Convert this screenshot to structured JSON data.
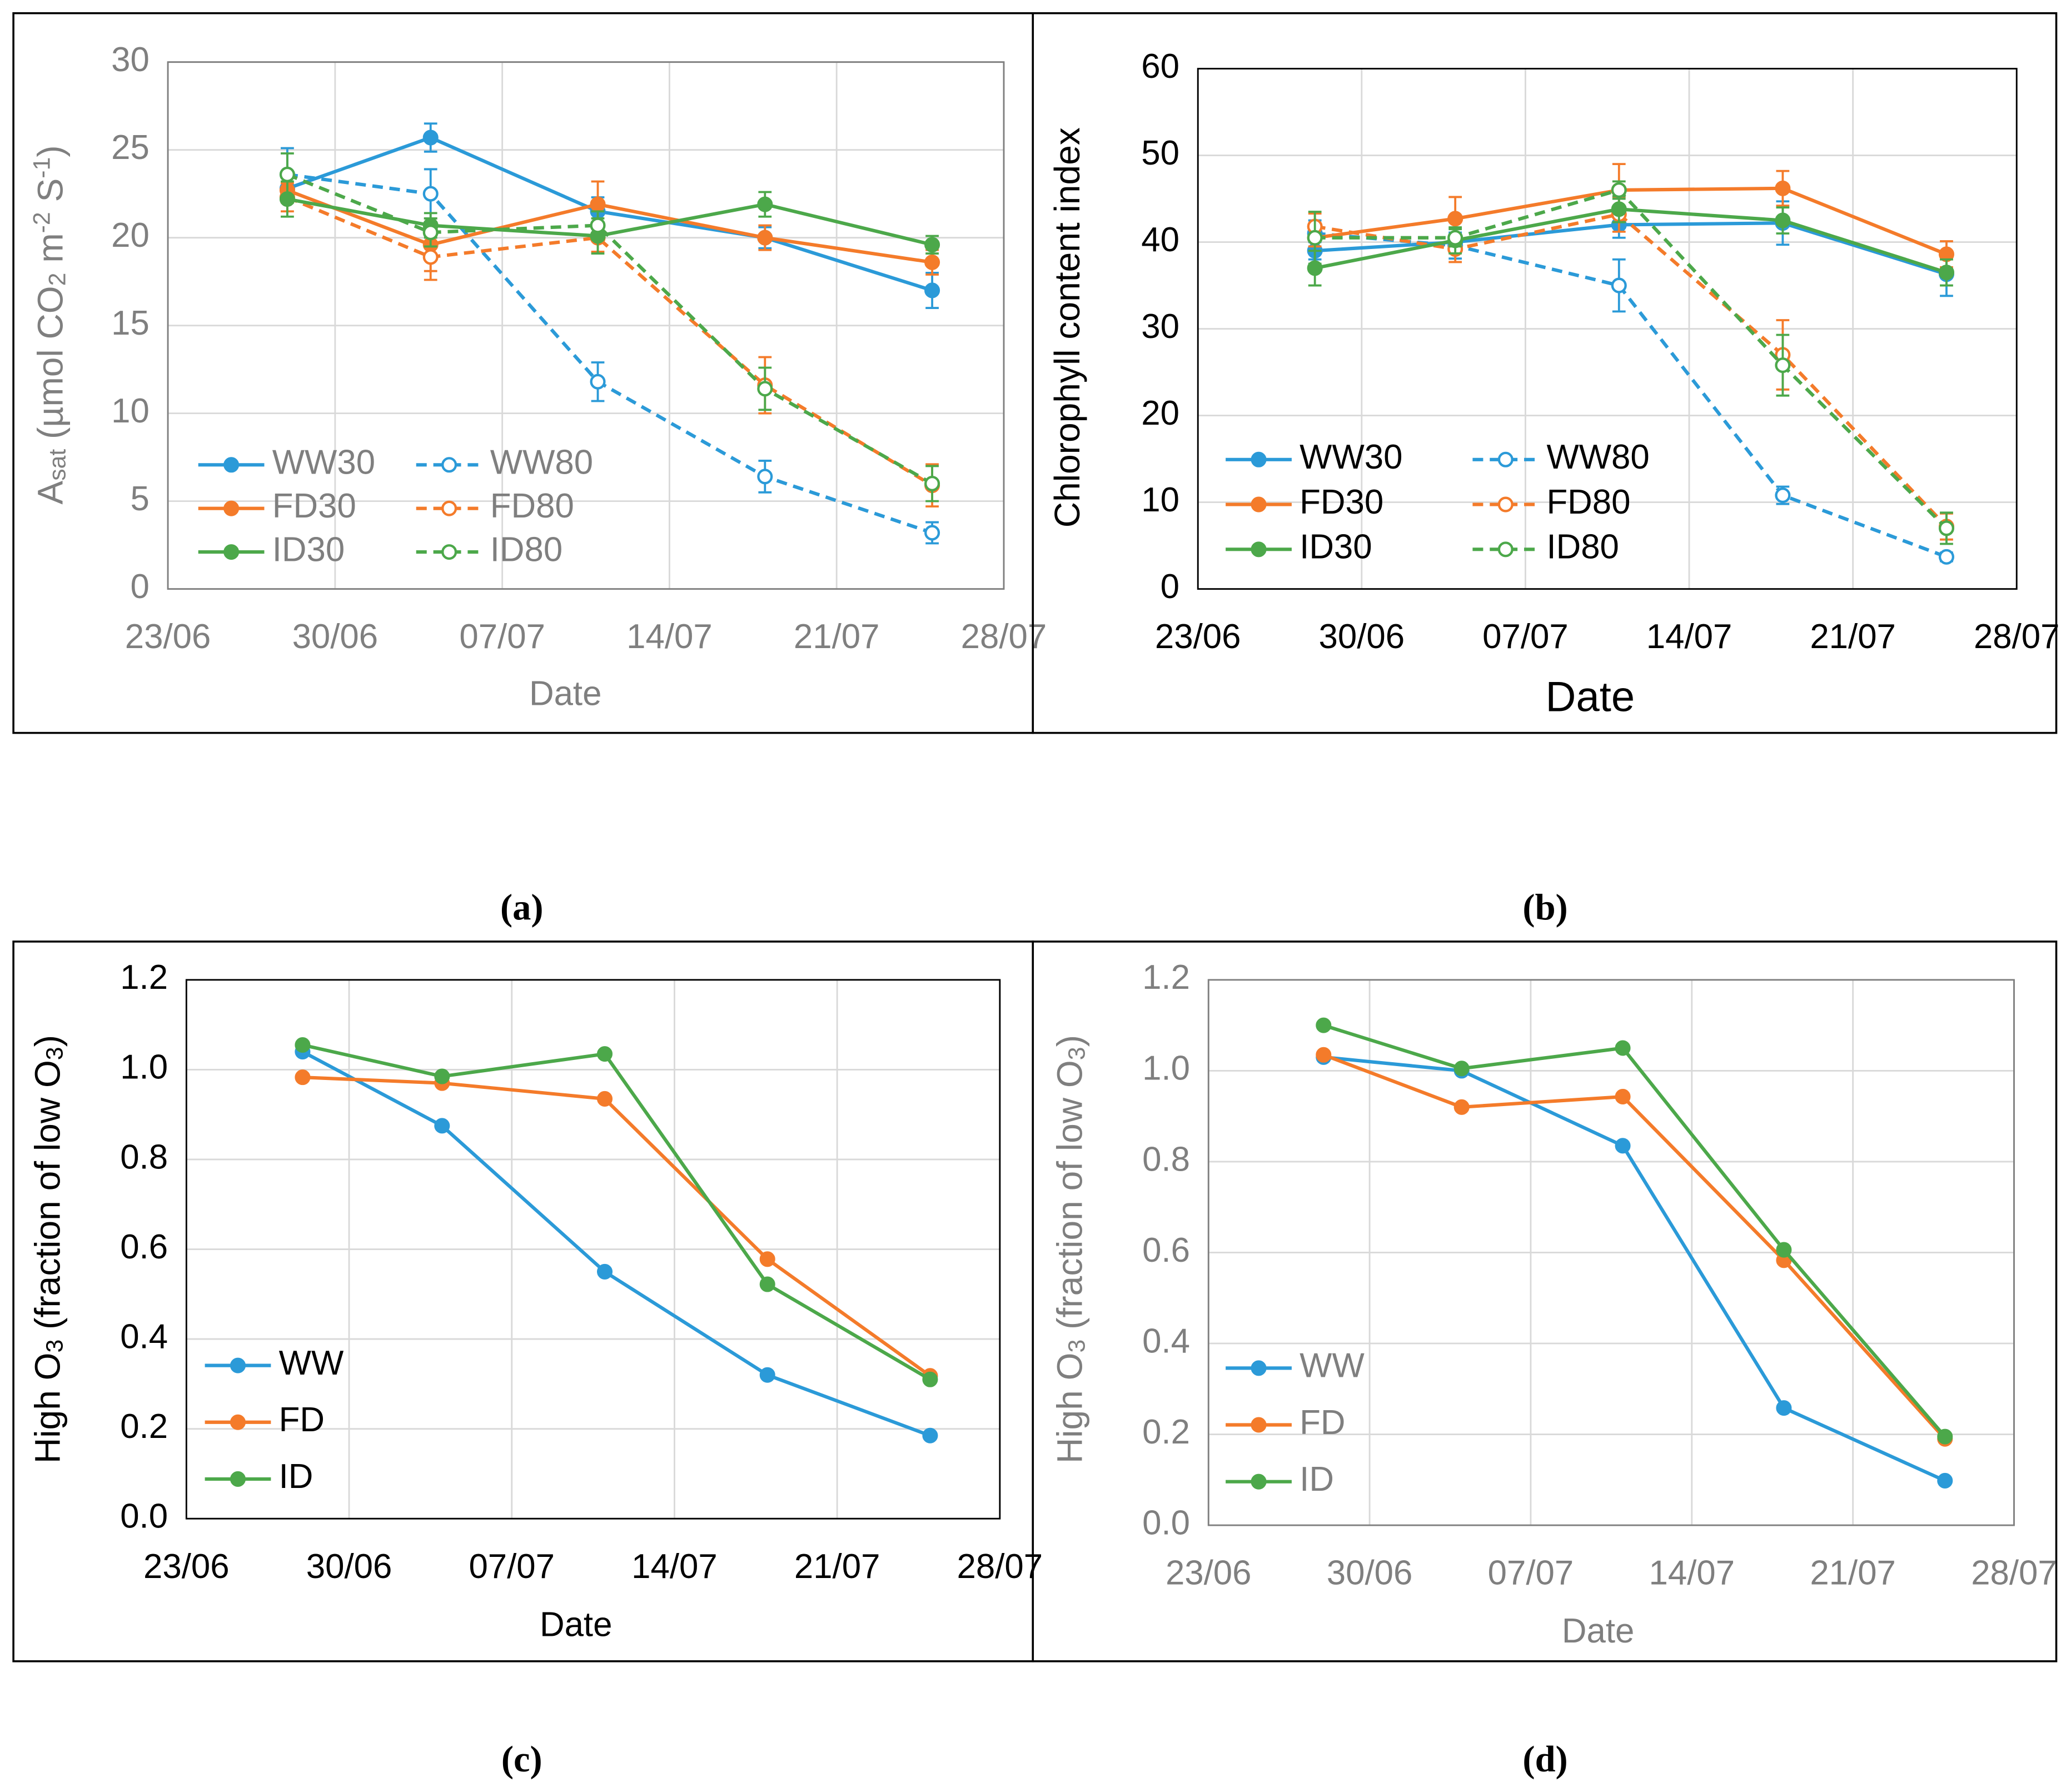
{
  "chart_data": [
    {
      "type": "line",
      "caption": "(a)",
      "text_color": "#7f7f7f",
      "xlabel": "Date",
      "ylabel": [
        {
          "text": "A"
        },
        {
          "text": "sat",
          "script": "sub"
        },
        {
          "text": " (µmol CO"
        },
        {
          "text": "2",
          "script": "sub"
        },
        {
          "text": " m"
        },
        {
          "text": "-2",
          "script": "super"
        },
        {
          "text": " S"
        },
        {
          "text": "-1",
          "script": "super"
        },
        {
          "text": ")"
        }
      ],
      "x": [
        "28/06",
        "04/07",
        "11/07",
        "18/07",
        "25/07"
      ],
      "xlim": [
        "23/06",
        "28/07"
      ],
      "xticks": [
        "23/06",
        "30/06",
        "07/07",
        "14/07",
        "21/07",
        "28/07"
      ],
      "ylim": [
        0,
        30
      ],
      "yticks": [
        0,
        5,
        10,
        15,
        20,
        25,
        30
      ],
      "grid": true,
      "legend": "lower left",
      "series": [
        {
          "name": "WW30",
          "color": "#2b9ad8",
          "dashed": false,
          "values": [
            22.8,
            25.7,
            21.5,
            20.0,
            17.0
          ],
          "errors": [
            0.8,
            0.8,
            0.8,
            0.6,
            1.0
          ]
        },
        {
          "name": "WW80",
          "color": "#2b9ad8",
          "dashed": true,
          "values": [
            23.6,
            22.5,
            11.8,
            6.4,
            3.2
          ],
          "errors": [
            1.5,
            1.4,
            1.1,
            0.9,
            0.6
          ]
        },
        {
          "name": "FD30",
          "color": "#f47b2a",
          "dashed": false,
          "values": [
            22.7,
            19.6,
            21.9,
            20.0,
            18.6
          ],
          "errors": [
            0.7,
            1.5,
            1.3,
            0.7,
            0.7
          ]
        },
        {
          "name": "FD80",
          "color": "#f47b2a",
          "dashed": true,
          "values": [
            22.3,
            18.9,
            20.0,
            11.6,
            5.9
          ],
          "errors": [
            0.8,
            1.3,
            0.8,
            1.6,
            1.2
          ]
        },
        {
          "name": "ID30",
          "color": "#4ca84a",
          "dashed": false,
          "values": [
            22.2,
            20.7,
            20.1,
            21.9,
            19.6
          ],
          "errors": [
            1.0,
            0.7,
            1.0,
            0.7,
            0.5
          ]
        },
        {
          "name": "ID80",
          "color": "#4ca84a",
          "dashed": true,
          "values": [
            23.6,
            20.3,
            20.7,
            11.4,
            6.0
          ],
          "errors": [
            1.2,
            0.8,
            0.8,
            1.2,
            1.0
          ]
        }
      ]
    },
    {
      "type": "line",
      "caption": "(b)",
      "text_color": "#000000",
      "xlabel": "Date",
      "ylabel": [
        {
          "text": "Chlorophyll  content index"
        }
      ],
      "x": [
        "28/06",
        "04/07",
        "11/07",
        "18/07",
        "25/07"
      ],
      "xlim": [
        "23/06",
        "28/07"
      ],
      "xticks": [
        "23/06",
        "30/06",
        "07/07",
        "14/07",
        "21/07",
        "28/07"
      ],
      "ylim": [
        0,
        60
      ],
      "yticks": [
        0,
        10,
        20,
        30,
        40,
        50,
        60
      ],
      "grid": true,
      "legend": "lower left",
      "series": [
        {
          "name": "WW30",
          "color": "#2b9ad8",
          "dashed": false,
          "values": [
            39.0,
            40.0,
            42.0,
            42.2,
            36.3
          ],
          "errors": [
            1.0,
            1.0,
            1.5,
            2.5,
            2.5
          ]
        },
        {
          "name": "WW80",
          "color": "#2b9ad8",
          "dashed": true,
          "values": [
            41.0,
            39.6,
            35.0,
            10.8,
            3.7
          ],
          "errors": [
            1.5,
            1.5,
            3.0,
            1.0,
            0.5
          ]
        },
        {
          "name": "FD30",
          "color": "#f47b2a",
          "dashed": false,
          "values": [
            40.5,
            42.7,
            46.0,
            46.2,
            38.6
          ],
          "errors": [
            1.0,
            2.5,
            3.0,
            2.0,
            1.5
          ]
        },
        {
          "name": "FD80",
          "color": "#f47b2a",
          "dashed": true,
          "values": [
            41.8,
            39.2,
            43.2,
            27.0,
            7.2
          ],
          "errors": [
            1.5,
            1.5,
            2.0,
            4.0,
            1.5
          ]
        },
        {
          "name": "ID30",
          "color": "#4ca84a",
          "dashed": false,
          "values": [
            37.0,
            40.2,
            43.8,
            42.5,
            36.5
          ],
          "errors": [
            2.0,
            1.5,
            1.5,
            1.5,
            1.5
          ]
        },
        {
          "name": "ID80",
          "color": "#4ca84a",
          "dashed": true,
          "values": [
            40.5,
            40.5,
            46.0,
            25.8,
            7.0
          ],
          "errors": [
            3.0,
            1.0,
            1.0,
            3.5,
            1.8
          ]
        }
      ]
    },
    {
      "type": "line",
      "caption": "(c)",
      "text_color": "#000000",
      "xlabel": "Date",
      "ylabel": [
        {
          "text": "High O"
        },
        {
          "text": "3",
          "script": "sub"
        },
        {
          "text": " (fraction of low O"
        },
        {
          "text": "3",
          "script": "sub"
        },
        {
          "text": ")"
        }
      ],
      "x": [
        "28/06",
        "04/07",
        "11/07",
        "18/07",
        "25/07"
      ],
      "xlim": [
        "23/06",
        "28/07"
      ],
      "xticks": [
        "23/06",
        "30/06",
        "07/07",
        "14/07",
        "21/07",
        "28/07"
      ],
      "ylim": [
        0,
        1.2
      ],
      "yticks": [
        {
          "value": 0,
          "label": "0.0"
        },
        0.2,
        0.4,
        0.6,
        0.8,
        {
          "value": 1,
          "label": "1.0"
        },
        1.2
      ],
      "grid": true,
      "legend": "lower left",
      "series": [
        {
          "name": "WW",
          "color": "#2b9ad8",
          "dashed": false,
          "values": [
            1.04,
            0.875,
            0.55,
            0.32,
            0.185
          ]
        },
        {
          "name": "FD",
          "color": "#f47b2a",
          "dashed": false,
          "values": [
            0.983,
            0.97,
            0.935,
            0.578,
            0.318
          ]
        },
        {
          "name": "ID",
          "color": "#4ca84a",
          "dashed": false,
          "values": [
            1.055,
            0.985,
            1.035,
            0.522,
            0.31
          ]
        }
      ]
    },
    {
      "type": "line",
      "caption": "(d)",
      "text_color": "#7f7f7f",
      "xlabel": "Date",
      "ylabel": [
        {
          "text": "High O"
        },
        {
          "text": "3",
          "script": "sub"
        },
        {
          "text": " (fraction of low O"
        },
        {
          "text": "3",
          "script": "sub"
        },
        {
          "text": ")"
        }
      ],
      "x": [
        "28/06",
        "04/07",
        "11/07",
        "18/07",
        "25/07"
      ],
      "xlim": [
        "23/06",
        "28/07"
      ],
      "xticks": [
        "23/06",
        "30/06",
        "07/07",
        "14/07",
        "21/07",
        "28/07"
      ],
      "ylim": [
        0,
        1.2
      ],
      "yticks": [
        {
          "value": 0,
          "label": "0.0"
        },
        0.2,
        0.4,
        0.6,
        0.8,
        {
          "value": 1,
          "label": "1.0"
        },
        1.2
      ],
      "grid": true,
      "legend": "lower left",
      "series": [
        {
          "name": "WW",
          "color": "#2b9ad8",
          "dashed": false,
          "values": [
            1.03,
            1.0,
            0.835,
            0.258,
            0.098
          ]
        },
        {
          "name": "FD",
          "color": "#f47b2a",
          "dashed": false,
          "values": [
            1.035,
            0.92,
            0.943,
            0.583,
            0.19
          ]
        },
        {
          "name": "ID",
          "color": "#4ca84a",
          "dashed": false,
          "values": [
            1.1,
            1.005,
            1.05,
            0.606,
            0.195
          ]
        }
      ]
    }
  ]
}
